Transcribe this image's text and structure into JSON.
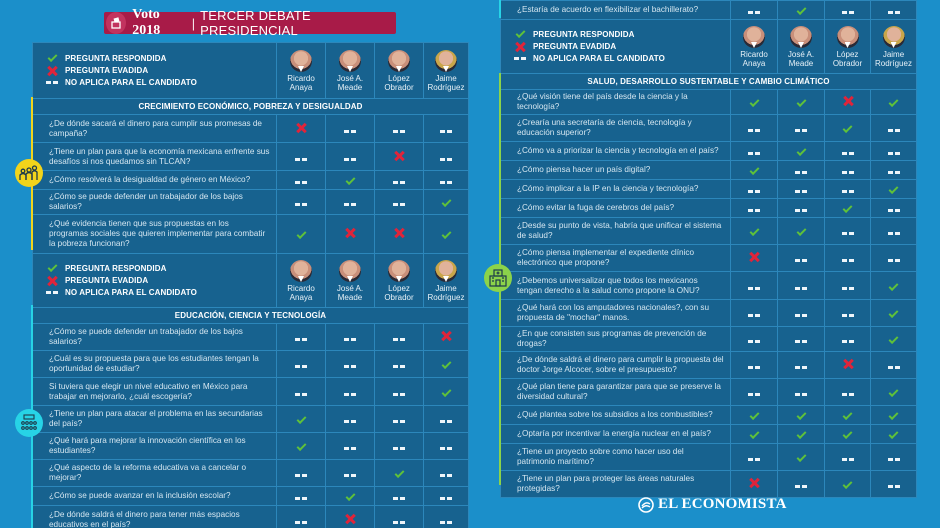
{
  "header": {
    "title_strong": "Voto 2018",
    "separator": "|",
    "title_sub": "TERCER DEBATE PRESIDENCIAL",
    "ballot_icon": "ballot-box-icon"
  },
  "legend": {
    "answered": "PREGUNTA RESPONDIDA",
    "evaded": "PREGUNTA EVADIDA",
    "not_applicable": "NO APLICA PARA EL CANDIDATO"
  },
  "candidates": [
    {
      "line1": "Ricardo",
      "line2": "Anaya"
    },
    {
      "line1": "José A.",
      "line2": "Meade"
    },
    {
      "line1": "López",
      "line2": "Obrador"
    },
    {
      "line1": "Jaime",
      "line2": "Rodríguez"
    }
  ],
  "colors": {
    "background": "#1b8fca",
    "table": "#17628f",
    "title_bar": "#a81b48",
    "answered": "#5fc13a",
    "evaded": "#e0243a",
    "section_economy_accent": "#f2d41b",
    "section_education_accent": "#27d3e6",
    "section_health_accent": "#8bd34a"
  },
  "sections": {
    "economy": {
      "title": "CRECIMIENTO ECONÓMICO, POBREZA Y DESIGUALDAD",
      "icon": "family-icon",
      "rows": [
        {
          "q": "¿De dónde sacará el dinero para cumplir sus promesas de campaña?",
          "m": [
            "x",
            "-",
            "-",
            "-"
          ]
        },
        {
          "q": "¿Tiene un plan para que la economía mexicana enfrente sus desafíos si nos quedamos sin TLCAN?",
          "m": [
            "-",
            "-",
            "x",
            "-"
          ]
        },
        {
          "q": "¿Cómo resolverá la desigualdad de género en México?",
          "m": [
            "-",
            "c",
            "-",
            "-"
          ]
        },
        {
          "q": "¿Cómo se puede defender un trabajador de los bajos salarios?",
          "m": [
            "-",
            "-",
            "-",
            "c"
          ]
        },
        {
          "q": "¿Qué evidencia tienen que sus propuestas en los programas sociales que quieren implementar para combatir la pobreza funcionan?",
          "m": [
            "c",
            "x",
            "x",
            "c"
          ]
        }
      ]
    },
    "education": {
      "title": "EDUCACIÓN, CIENCIA Y TECNOLOGÍA",
      "icon": "classroom-icon",
      "rows": [
        {
          "q": "¿Cómo se puede defender un trabajador de los bajos salarios?",
          "m": [
            "-",
            "-",
            "-",
            "x"
          ]
        },
        {
          "q": "¿Cuál es su propuesta para que los estudiantes tengan la oportunidad de estudiar?",
          "m": [
            "-",
            "-",
            "-",
            "c"
          ]
        },
        {
          "q": "Si tuviera que elegir un nivel educativo en México para trabajar en mejorarlo, ¿cuál escogería?",
          "m": [
            "-",
            "-",
            "-",
            "c"
          ]
        },
        {
          "q": "¿Tiene un plan para atacar el problema en las secundarias del país?",
          "m": [
            "c",
            "-",
            "-",
            "-"
          ]
        },
        {
          "q": "¿Qué hará para mejorar la innovación científica en los estudiantes?",
          "m": [
            "c",
            "-",
            "-",
            "-"
          ]
        },
        {
          "q": "¿Qué aspecto de la reforma educativa va a cancelar o mejorar?",
          "m": [
            "-",
            "-",
            "c",
            "-"
          ]
        },
        {
          "q": "¿Cómo se puede avanzar en la inclusión escolar?",
          "m": [
            "-",
            "c",
            "-",
            "-"
          ]
        },
        {
          "q": "¿De dónde saldrá el dinero para tener más espacios educativos en el país?",
          "m": [
            "-",
            "x",
            "-",
            "-"
          ]
        }
      ],
      "continued_row": {
        "q": "¿Estaría de acuerdo en flexibilizar el bachillerato?",
        "m": [
          "-",
          "c",
          "-",
          "-"
        ]
      }
    },
    "health": {
      "title": "SALUD, DESARROLLO SUSTENTABLE Y CAMBIO CLIMÁTICO",
      "icon": "hospital-icon",
      "rows": [
        {
          "q": "¿Qué visión tiene del país desde la ciencia y la tecnología?",
          "m": [
            "c",
            "c",
            "x",
            "c"
          ]
        },
        {
          "q": "¿Crearía una secretaría de ciencia, tecnología y educación superior?",
          "m": [
            "-",
            "-",
            "c",
            "-"
          ]
        },
        {
          "q": "¿Cómo va a priorizar la ciencia y tecnología en el país?",
          "m": [
            "-",
            "c",
            "-",
            "-"
          ]
        },
        {
          "q": "¿Cómo piensa hacer un país digital?",
          "m": [
            "c",
            "-",
            "-",
            "-"
          ]
        },
        {
          "q": "¿Cómo implicar a la IP en la ciencia y tecnología?",
          "m": [
            "-",
            "-",
            "-",
            "c"
          ]
        },
        {
          "q": "¿Cómo evitar la fuga de cerebros del país?",
          "m": [
            "-",
            "-",
            "c",
            "-"
          ]
        },
        {
          "q": "¿Desde su punto de vista, habría que unificar el sistema de salud?",
          "m": [
            "c",
            "c",
            "-",
            "-"
          ]
        },
        {
          "q": "¿Cómo piensa implementar el expediente clínico electrónico que propone?",
          "m": [
            "x",
            "-",
            "-",
            "-"
          ]
        },
        {
          "q": "¿Debemos universalizar que todos los mexicanos tengan derecho a la salud como propone la ONU?",
          "m": [
            "-",
            "-",
            "-",
            "c"
          ]
        },
        {
          "q": "¿Qué hará con los amputadores nacionales?, con su propuesta de \"mochar\" manos.",
          "m": [
            "-",
            "-",
            "-",
            "c"
          ]
        },
        {
          "q": "¿En que consisten sus programas de prevención de drogas?",
          "m": [
            "-",
            "-",
            "-",
            "c"
          ]
        },
        {
          "q": "¿De dónde saldrá el dinero para cumplir la propuesta del doctor Jorge Alcocer, sobre el presupuesto?",
          "m": [
            "-",
            "-",
            "x",
            "-"
          ]
        },
        {
          "q": "¿Qué plan tiene para garantizar para que se preserve la diversidad cultural?",
          "m": [
            "-",
            "-",
            "-",
            "c"
          ]
        },
        {
          "q": "¿Qué plantea sobre los subsidios a los combustibles?",
          "m": [
            "c",
            "c",
            "c",
            "c"
          ]
        },
        {
          "q": "¿Optaría por incentivar la energía nuclear en el país?",
          "m": [
            "c",
            "c",
            "c",
            "c"
          ]
        },
        {
          "q": "¿Tiene un proyecto sobre como hacer uso del patrimonio marítimo?",
          "m": [
            "-",
            "c",
            "-",
            "-"
          ]
        },
        {
          "q": "¿Tiene un plan para proteger las áreas naturales protegidas?",
          "m": [
            "x",
            "-",
            "c",
            "-"
          ]
        }
      ]
    }
  },
  "footer": {
    "logo_text": "EL ECONOMISTA",
    "logo_icon": "el-economista-globe-icon"
  }
}
